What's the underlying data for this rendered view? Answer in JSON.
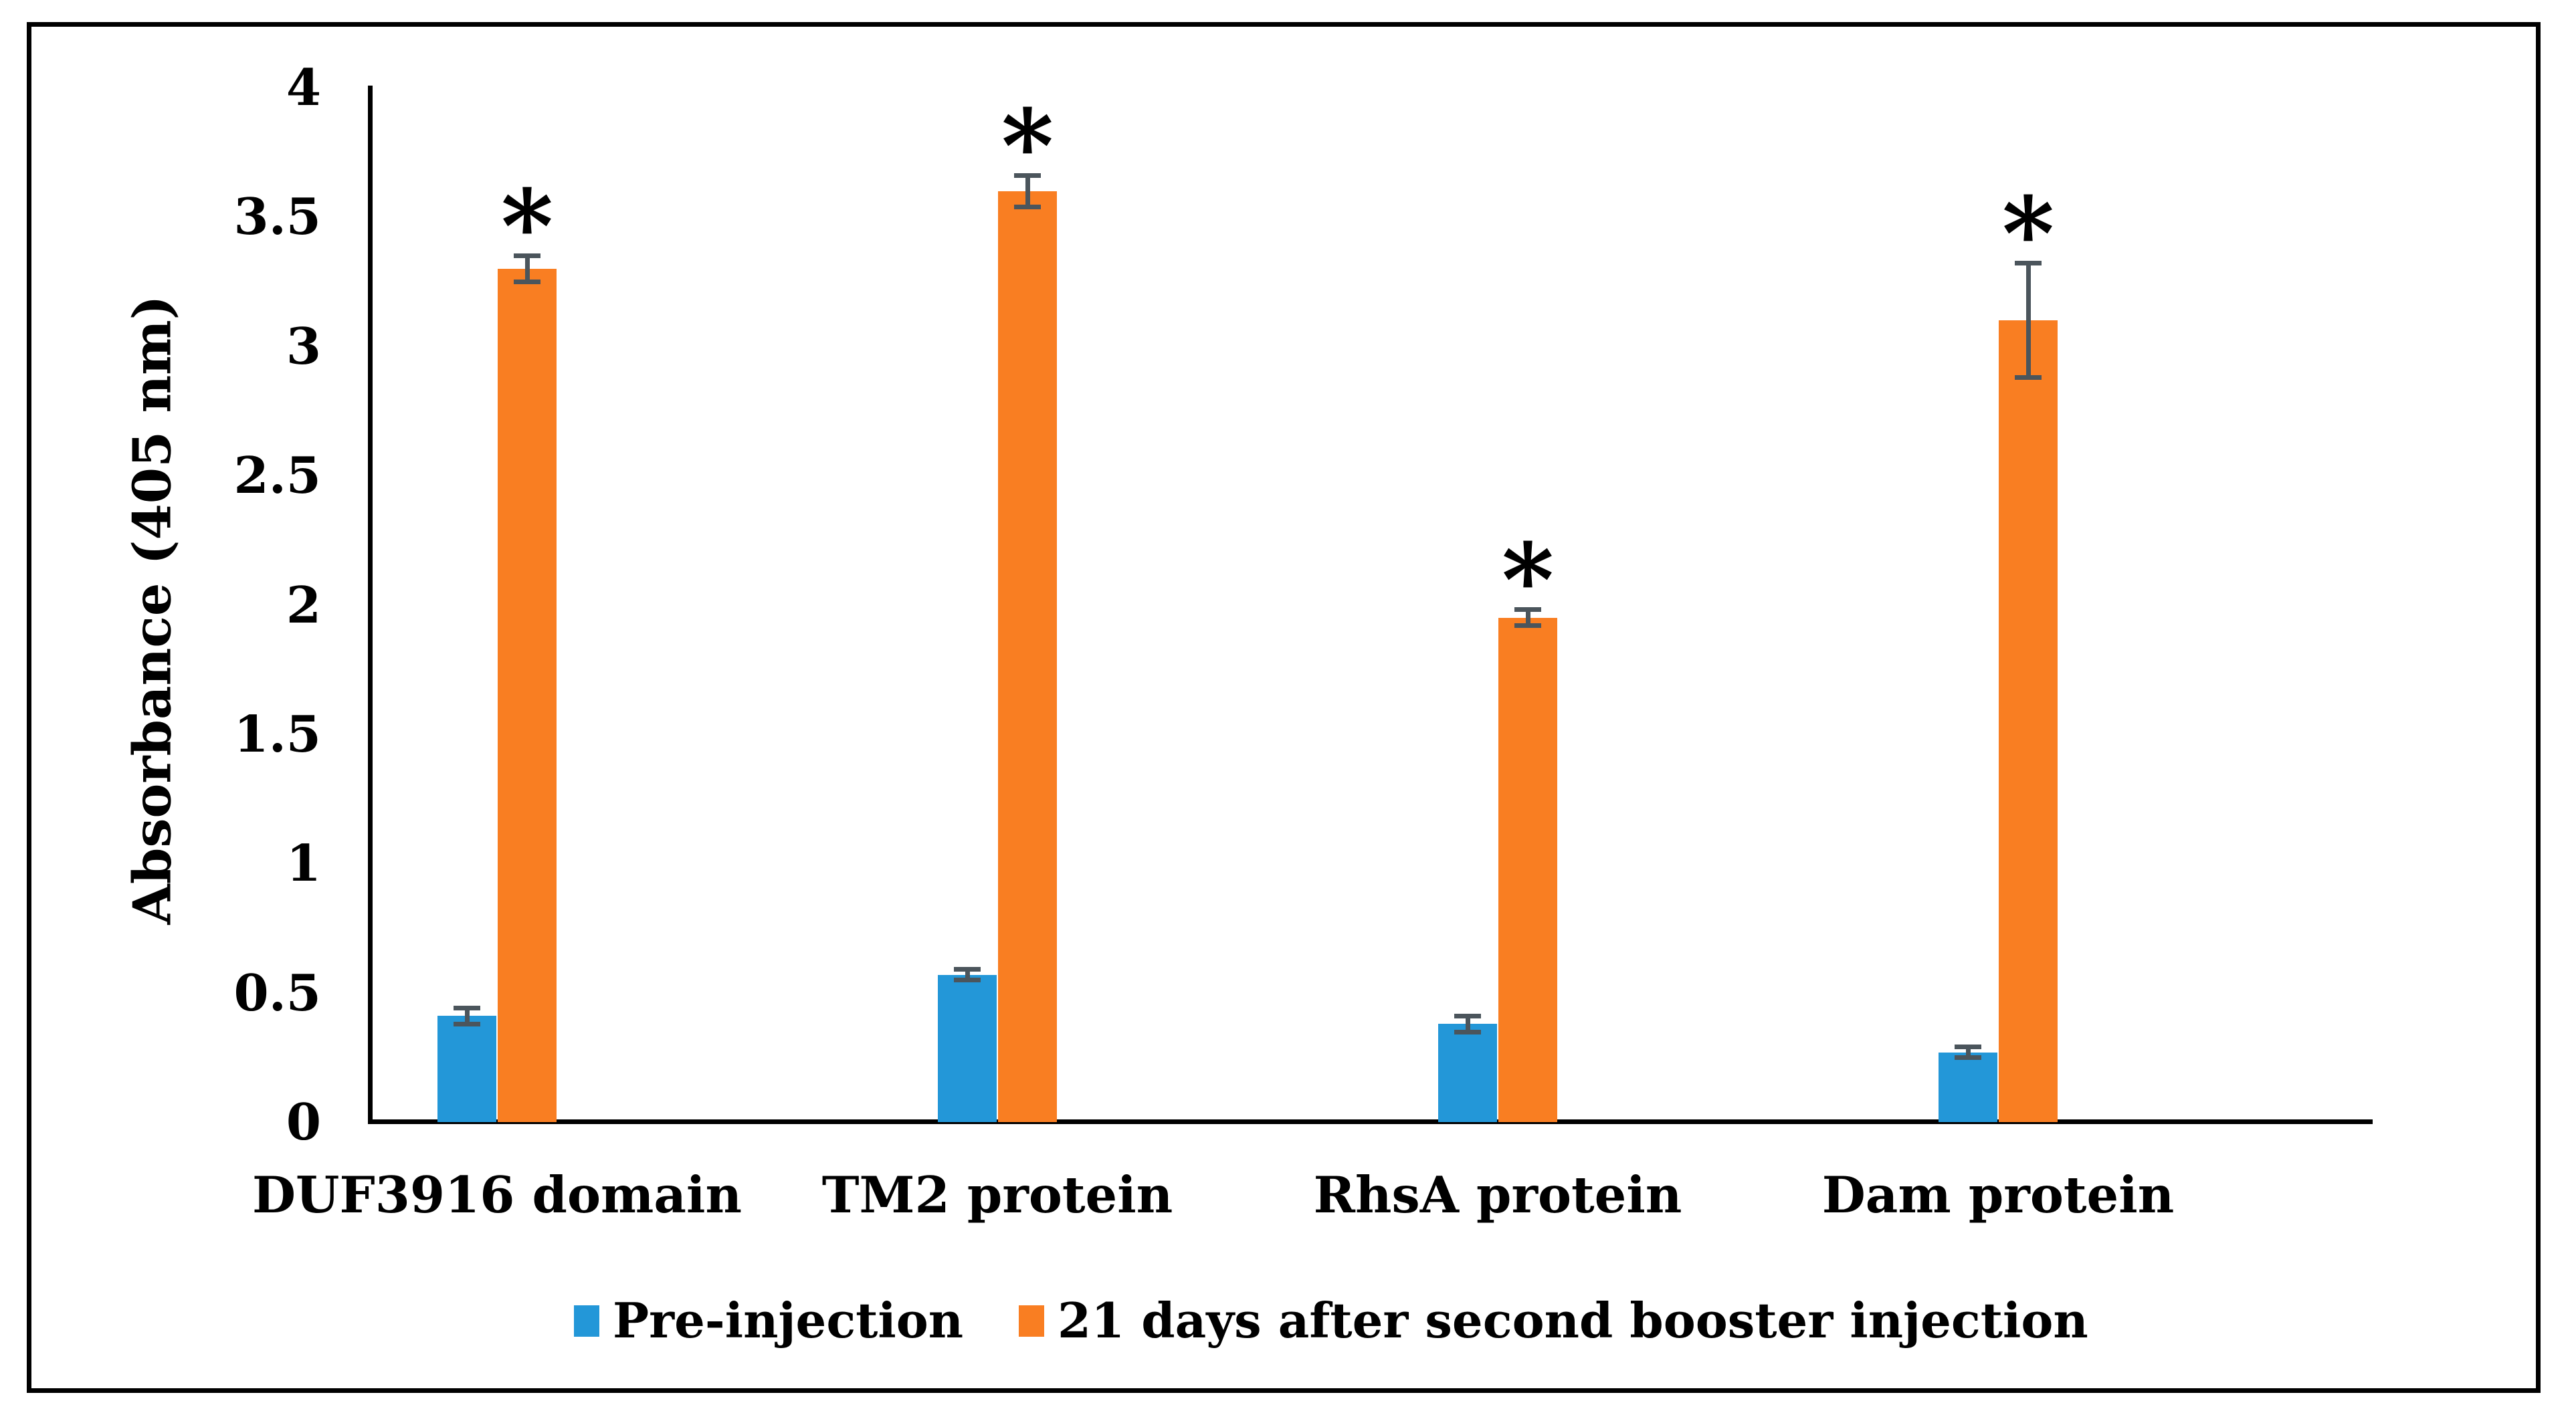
{
  "figure": {
    "background": "#FFFFFF",
    "border_color": "#000000"
  },
  "chart_data": {
    "type": "bar",
    "title": "",
    "xlabel": "",
    "ylabel": "Absorbance (405 nm)",
    "ylim": [
      0,
      4
    ],
    "yticks": [
      0,
      0.5,
      1,
      1.5,
      2,
      2.5,
      3,
      3.5,
      4
    ],
    "ytick_labels": [
      "0",
      "0.5",
      "1",
      "1.5",
      "2",
      "2.5",
      "3",
      "3.5",
      "4"
    ],
    "categories": [
      "DUF3916 domain",
      "TM2 protein",
      "RhsA protein",
      "Dam protein"
    ],
    "series": [
      {
        "name": "Pre-injection",
        "color": "#2397D8",
        "values": [
          0.41,
          0.57,
          0.38,
          0.27
        ],
        "errors": [
          0.04,
          0.03,
          0.04,
          0.03
        ],
        "significant": [
          false,
          false,
          false,
          false
        ]
      },
      {
        "name": "21 days after second booster injection",
        "color": "#F97E22",
        "values": [
          3.3,
          3.6,
          1.95,
          3.1
        ],
        "errors": [
          0.06,
          0.07,
          0.04,
          0.23
        ],
        "significant": [
          true,
          true,
          true,
          true
        ]
      }
    ],
    "error_bar_color": "#4B555C",
    "significance_marker": "*",
    "axis_color": "#000000",
    "grid": false,
    "legend_position": "bottom"
  }
}
